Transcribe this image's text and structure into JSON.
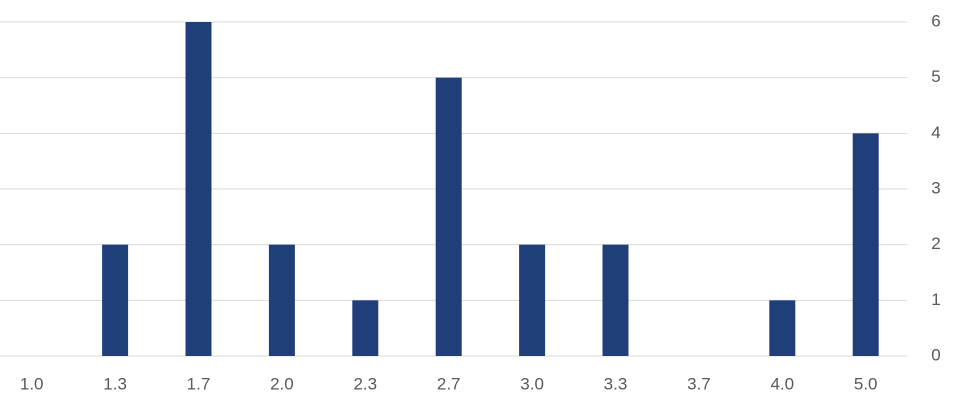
{
  "chart_data": {
    "type": "bar",
    "categories": [
      "1.0",
      "1.3",
      "1.7",
      "2.0",
      "2.3",
      "2.7",
      "3.0",
      "3.3",
      "3.7",
      "4.0",
      "5.0"
    ],
    "values": [
      0,
      2,
      6,
      2,
      1,
      5,
      2,
      2,
      0,
      1,
      4
    ],
    "color": "#203f7a",
    "ylim": [
      0,
      6
    ],
    "yticks": [
      0,
      1,
      2,
      3,
      4,
      5,
      6
    ],
    "grid": true,
    "y_axis_side": "right"
  }
}
